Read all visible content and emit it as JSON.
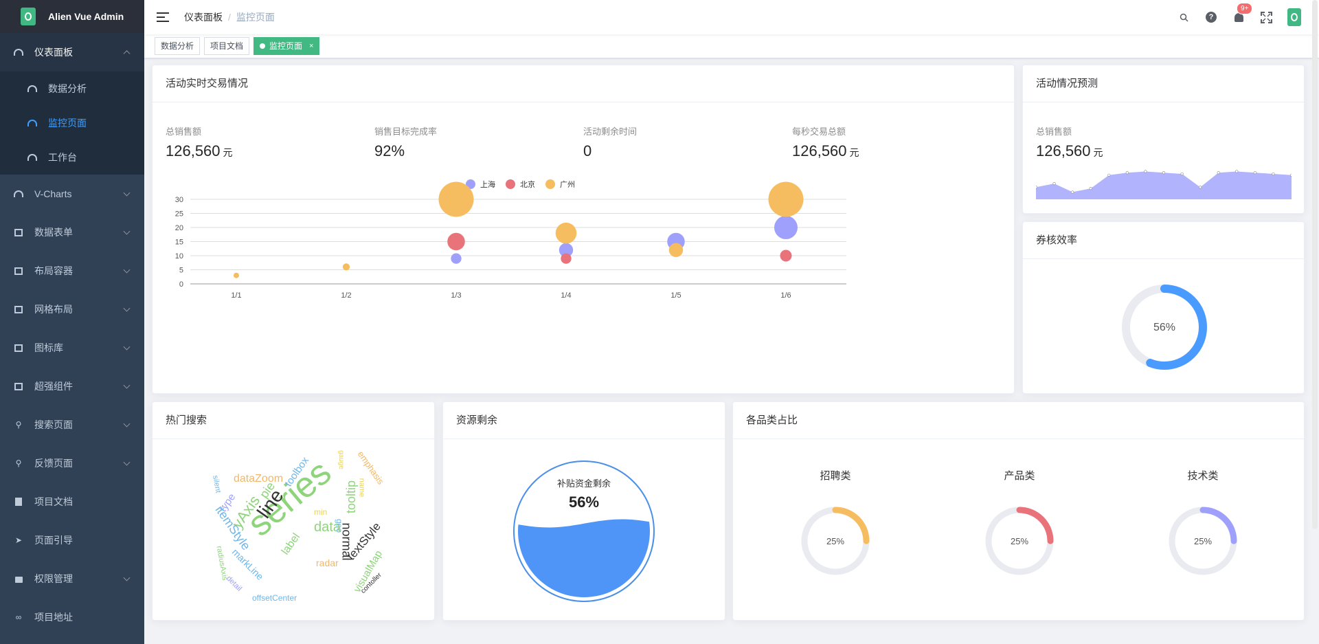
{
  "app": {
    "title": "Alien Vue Admin"
  },
  "sidebar": {
    "items": [
      {
        "label": "仪表面板",
        "icon": "dashboard-icon",
        "open": true,
        "children": [
          {
            "label": "数据分析",
            "icon": "dashboard-icon"
          },
          {
            "label": "监控页面",
            "icon": "dashboard-icon",
            "active": true
          },
          {
            "label": "工作台",
            "icon": "dashboard-icon"
          }
        ]
      },
      {
        "label": "V-Charts",
        "icon": "dashboard-icon"
      },
      {
        "label": "数据表单",
        "icon": "folder-icon"
      },
      {
        "label": "布局容器",
        "icon": "folder-icon"
      },
      {
        "label": "网格布局",
        "icon": "folder-icon"
      },
      {
        "label": "图标库",
        "icon": "info-icon"
      },
      {
        "label": "超强组件",
        "icon": "component-icon"
      },
      {
        "label": "搜索页面",
        "icon": "search-icon"
      },
      {
        "label": "反馈页面",
        "icon": "search-icon"
      },
      {
        "label": "项目文档",
        "icon": "document-icon"
      },
      {
        "label": "页面引导",
        "icon": "send-icon"
      },
      {
        "label": "权限管理",
        "icon": "lock-icon"
      },
      {
        "label": "项目地址",
        "icon": "link-icon"
      }
    ]
  },
  "navbar": {
    "breadcrumb": [
      "仪表面板",
      "监控页面"
    ],
    "separator": "/",
    "notification_badge": "9+",
    "help_glyph": "?"
  },
  "tags": [
    {
      "label": "数据分析"
    },
    {
      "label": "项目文档"
    },
    {
      "label": "监控页面",
      "active": true,
      "close": "×"
    }
  ],
  "realtime": {
    "title": "活动实时交易情况",
    "stats": [
      {
        "label": "总销售额",
        "value": "126,560",
        "unit": "元"
      },
      {
        "label": "销售目标完成率",
        "value": "92%",
        "unit": ""
      },
      {
        "label": "活动剩余时间",
        "value": "0",
        "unit": ""
      },
      {
        "label": "每秒交易总额",
        "value": "126,560",
        "unit": "元"
      }
    ]
  },
  "forecast": {
    "title": "活动情况预测",
    "label": "总销售额",
    "value": "126,560",
    "unit": "元"
  },
  "efficiency": {
    "title": "券核效率",
    "percent_text": "56%",
    "value": 0.56
  },
  "hot_search": {
    "title": "热门搜索"
  },
  "resource": {
    "title": "资源剩余",
    "label": "补贴资金剩余",
    "percent_text": "56%",
    "value": 0.56
  },
  "categories": {
    "title": "各品类占比",
    "items": [
      {
        "name": "招聘类",
        "percent_text": "25%",
        "value": 0.25,
        "color": "#f6bd60"
      },
      {
        "name": "产品类",
        "percent_text": "25%",
        "value": 0.25,
        "color": "#e8737a"
      },
      {
        "name": "技术类",
        "percent_text": "25%",
        "value": 0.25,
        "color": "#9ea0fb"
      }
    ]
  },
  "wordcloud": [
    {
      "text": "series",
      "color": "#8ed47b"
    },
    {
      "text": "line",
      "color": "#333333"
    },
    {
      "text": "yAxis",
      "color": "#8ed47b"
    },
    {
      "text": "pie",
      "color": "#8ed47b"
    },
    {
      "text": "toolbox",
      "color": "#6fb6e8"
    },
    {
      "text": "dataZoom",
      "color": "#f0b86a"
    },
    {
      "text": "type",
      "color": "#9ea0fb"
    },
    {
      "text": "silent",
      "color": "#6fb6e8"
    },
    {
      "text": "itemStyle",
      "color": "#6fb6e8"
    },
    {
      "text": "radiusAxis",
      "color": "#8ed47b"
    },
    {
      "text": "markLine",
      "color": "#6fb6e8"
    },
    {
      "text": "detail",
      "color": "#9ea0fb"
    },
    {
      "text": "offsetCenter",
      "color": "#6fb6e8"
    },
    {
      "text": "label",
      "color": "#8ed47b"
    },
    {
      "text": "data",
      "color": "#8ed47b"
    },
    {
      "text": "normal",
      "color": "#333333"
    },
    {
      "text": "geo",
      "color": "#6fb6e8"
    },
    {
      "text": "radar",
      "color": "#f0b86a"
    },
    {
      "text": "textStyle",
      "color": "#333333"
    },
    {
      "text": "visualMap",
      "color": "#8ed47b"
    },
    {
      "text": "contoller",
      "color": "#333333"
    },
    {
      "text": "tooltip",
      "color": "#8ed47b"
    },
    {
      "text": "min",
      "color": "#e8d35a"
    },
    {
      "text": "name",
      "color": "#e8d35a"
    },
    {
      "text": "emphasis",
      "color": "#f0b86a"
    },
    {
      "text": "gauge",
      "color": "#e8d35a"
    }
  ],
  "chart_data": [
    {
      "type": "scatter",
      "categories": [
        "1/1",
        "1/2",
        "1/3",
        "1/4",
        "1/5",
        "1/6"
      ],
      "ylim": [
        0,
        30
      ],
      "yticks": [
        0,
        5,
        10,
        15,
        20,
        25,
        30
      ],
      "legend_position": "top-center",
      "series": [
        {
          "name": "上海",
          "color": "#9ea0fb",
          "points": [
            [
              2,
              9
            ],
            [
              3,
              12
            ],
            [
              4,
              15
            ],
            [
              5,
              20
            ]
          ]
        },
        {
          "name": "北京",
          "color": "#e8737a",
          "points": [
            [
              2,
              15
            ],
            [
              3,
              9
            ],
            [
              5,
              10
            ]
          ]
        },
        {
          "name": "广州",
          "color": "#f6bd60",
          "points": [
            [
              0,
              3
            ],
            [
              1,
              6
            ],
            [
              2,
              30
            ],
            [
              3,
              18
            ],
            [
              4,
              12
            ],
            [
              5,
              30
            ]
          ]
        }
      ]
    },
    {
      "type": "area",
      "color": "#9ea0fb",
      "values": [
        10,
        13,
        6,
        9,
        20,
        22,
        23,
        22,
        21,
        10,
        22,
        23,
        22,
        21,
        20
      ]
    }
  ]
}
